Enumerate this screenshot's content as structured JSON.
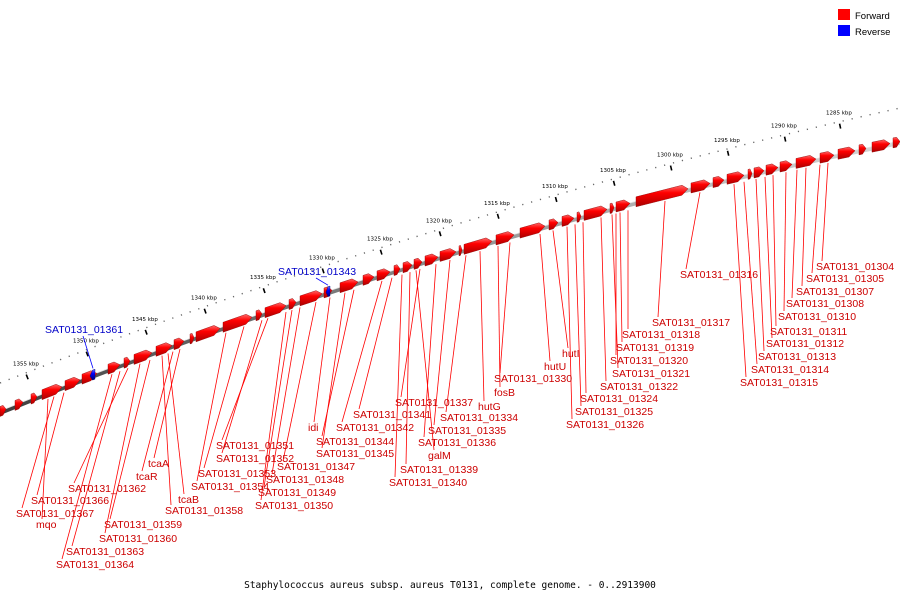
{
  "legend": [
    {
      "label": "Forward",
      "color": "#ff0000"
    },
    {
      "label": "Reverse",
      "color": "#0000ff"
    }
  ],
  "caption": "Staphylococcus aureus subsp. aureus T0131, complete genome. - 0..2913900",
  "ticks": [
    "1285 kbp",
    "1290 kbp",
    "1295 kbp",
    "1300 kbp",
    "1305 kbp",
    "1310 kbp",
    "1315 kbp",
    "1320 kbp",
    "1325 kbp",
    "1330 kbp",
    "1335 kbp",
    "1340 kbp",
    "1345 kbp",
    "1350 kbp",
    "1355 kbp"
  ],
  "reverse_genes": [
    "SAT0131_01343",
    "SAT0131_01361"
  ],
  "forward_genes": [
    "SAT0131_01304",
    "SAT0131_01305",
    "SAT0131_01307",
    "SAT0131_01308",
    "SAT0131_01310",
    "SAT0131_01311",
    "SAT0131_01312",
    "SAT0131_01313",
    "SAT0131_01314",
    "SAT0131_01315",
    "SAT0131_01316",
    "SAT0131_01317",
    "SAT0131_01318",
    "SAT0131_01319",
    "SAT0131_01320",
    "SAT0131_01321",
    "SAT0131_01322",
    "SAT0131_01324",
    "SAT0131_01325",
    "SAT0131_01326",
    "hutI",
    "hutU",
    "SAT0131_01330",
    "fosB",
    "hutG",
    "SAT0131_01334",
    "SAT0131_01335",
    "SAT0131_01336",
    "SAT0131_01337",
    "galM",
    "SAT0131_01339",
    "SAT0131_01340",
    "SAT0131_01341",
    "SAT0131_01342",
    "SAT0131_01344",
    "SAT0131_01345",
    "idi",
    "SAT0131_01347",
    "SAT0131_01348",
    "SAT0131_01349",
    "SAT0131_01350",
    "SAT0131_01351",
    "SAT0131_01352",
    "SAT0131_01353",
    "SAT0131_01354",
    "tcaA",
    "tcaR",
    "tcaB",
    "SAT0131_01358",
    "SAT0131_01359",
    "SAT0131_01360",
    "SAT0131_01362",
    "SAT0131_01363",
    "SAT0131_01364",
    "SAT0131_01366",
    "SAT0131_01367",
    "mqo"
  ]
}
